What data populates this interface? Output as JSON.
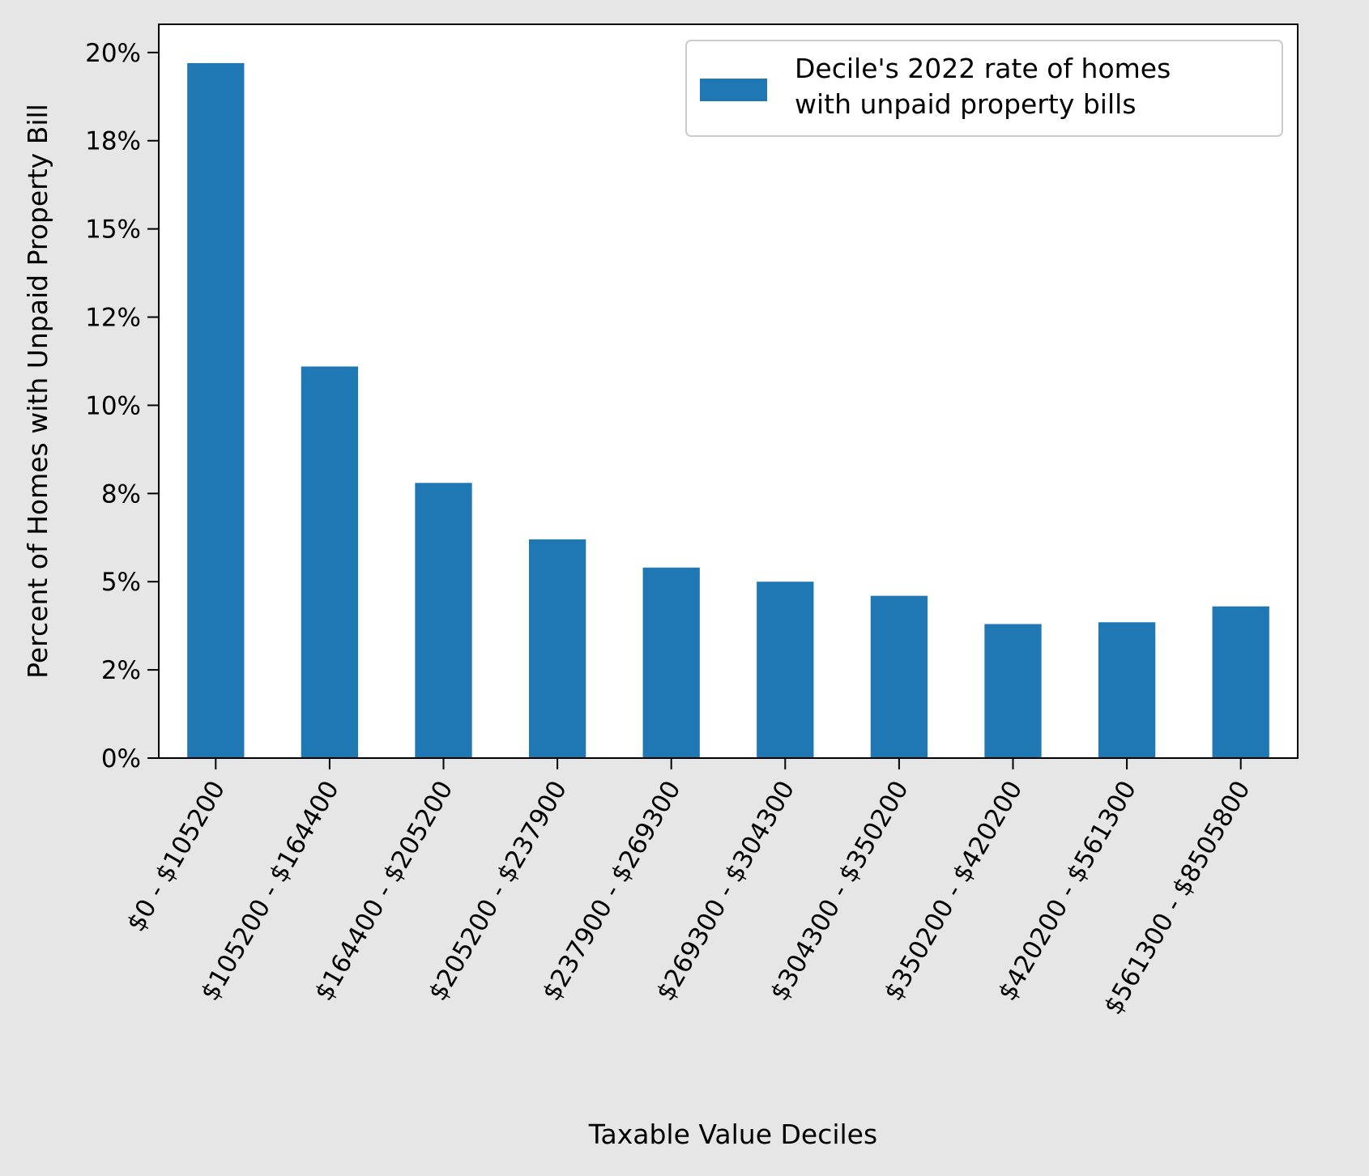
{
  "chart_data": {
    "type": "bar",
    "categories": [
      "$0 - $105200",
      "$105200 - $164400",
      "$164400 - $205200",
      "$205200 - $237900",
      "$237900 - $269300",
      "$269300 - $304300",
      "$304300 - $350200",
      "$350200 - $420200",
      "$420200 - $561300",
      "$561300 - $8505800"
    ],
    "series": [
      {
        "name": "Decile's 2022 rate of homes with unpaid property bills",
        "name_lines": [
          "Decile's 2022 rate of homes",
          "with unpaid property bills"
        ],
        "values": [
          19.7,
          11.1,
          7.8,
          6.2,
          5.4,
          5.0,
          4.6,
          3.8,
          3.85,
          4.3
        ],
        "color": "#1f77b4"
      }
    ],
    "title": "",
    "xlabel": "Taxable Value Deciles",
    "ylabel": "Percent of Homes with Unpaid Property Bill",
    "ylim": [
      0,
      20.8
    ],
    "yticks": [
      0,
      2.5,
      5,
      7.5,
      10,
      12.5,
      15,
      17.5,
      20
    ],
    "ytick_labels": [
      "0%",
      "2%",
      "5%",
      "8%",
      "10%",
      "12%",
      "15%",
      "18%",
      "20%"
    ],
    "grid": false,
    "legend_position": "top-right"
  }
}
